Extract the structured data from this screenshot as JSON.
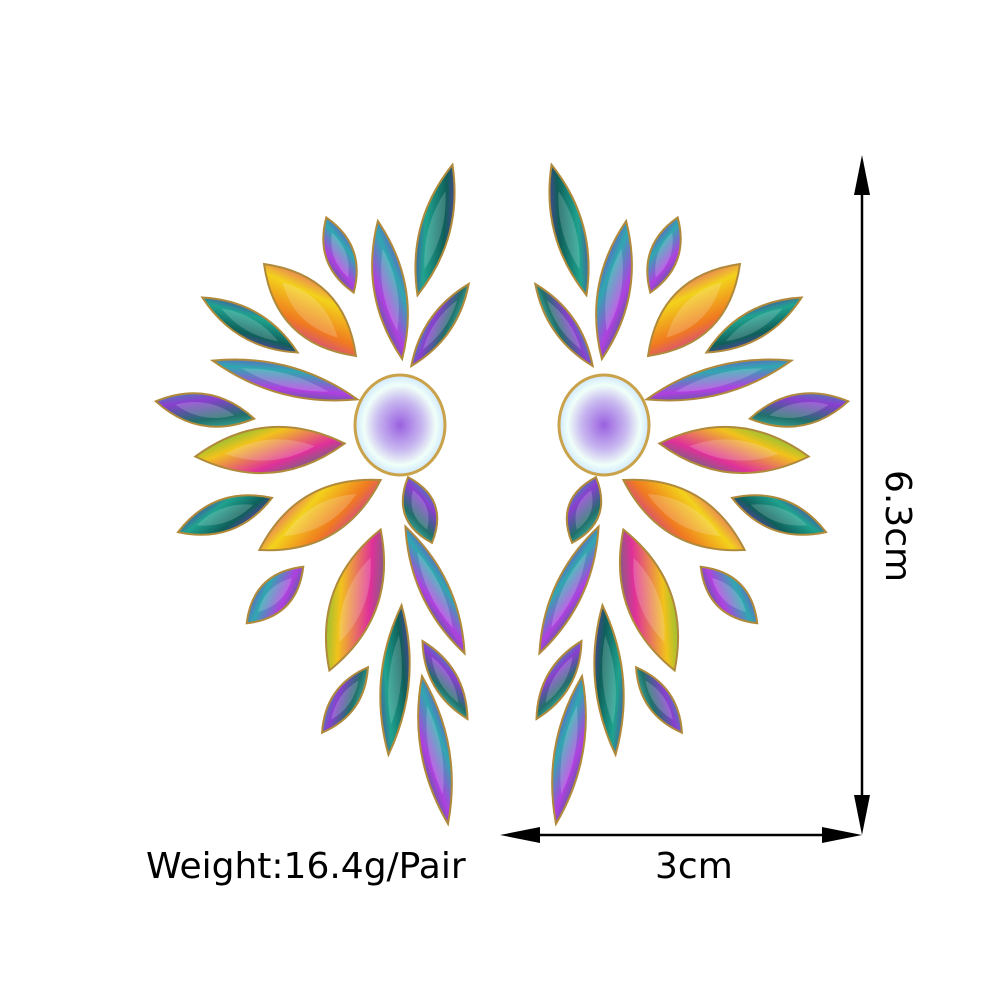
{
  "product": {
    "subject": "iridescent marquise crystal half-wing earrings",
    "weight_label": "Weight:16.4g/Pair",
    "width_label": "3cm",
    "height_label": "6.3cm"
  },
  "colors": {
    "background": "#ffffff",
    "dimension_lines": "#000000",
    "stone_palette": [
      "#7b2fbf",
      "#1fa38f",
      "#e0309a",
      "#f2d21b",
      "#2fbf4f",
      "#3b6fd8"
    ]
  }
}
